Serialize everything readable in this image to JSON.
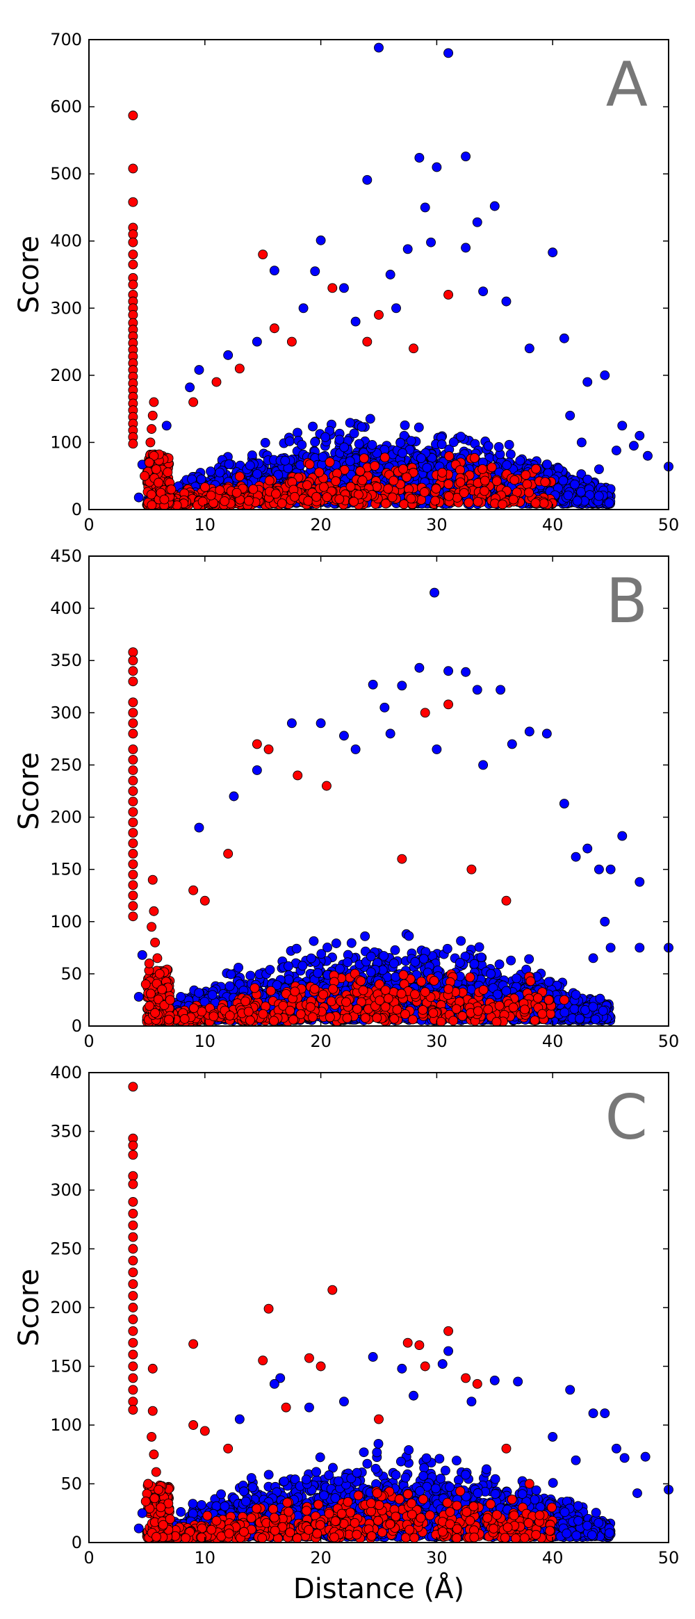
{
  "chart_data": [
    {
      "type": "scatter",
      "panel_label": "A",
      "xlabel": "",
      "ylabel": "Score",
      "xlim": [
        0,
        50
      ],
      "ylim": [
        0,
        700
      ],
      "x_ticks": [
        "0",
        "10",
        "20",
        "30",
        "40",
        "50"
      ],
      "y_ticks": [
        "0",
        "100",
        "200",
        "300",
        "400",
        "500",
        "600",
        "700"
      ],
      "grid": false,
      "legend": "none",
      "series": [
        {
          "color": "#0000ff",
          "points": [
            [
              25,
              688
            ],
            [
              31,
              680
            ],
            [
              32.5,
              526
            ],
            [
              28.5,
              524
            ],
            [
              30,
              510
            ],
            [
              24,
              491
            ],
            [
              35,
              452
            ],
            [
              29,
              450
            ],
            [
              33.5,
              428
            ],
            [
              20,
              401
            ],
            [
              29.5,
              398
            ],
            [
              27.5,
              388
            ],
            [
              32.5,
              390
            ],
            [
              40,
              383
            ],
            [
              16,
              356
            ],
            [
              19.5,
              355
            ],
            [
              34,
              325
            ],
            [
              22,
              330
            ],
            [
              36,
              310
            ],
            [
              41,
              255
            ],
            [
              43,
              190
            ],
            [
              44.5,
              200
            ],
            [
              46,
              125
            ],
            [
              47.5,
              110
            ],
            [
              47,
              95
            ],
            [
              48.2,
              80
            ],
            [
              50,
              64
            ],
            [
              45.5,
              88
            ],
            [
              42.5,
              100
            ],
            [
              44,
              60
            ],
            [
              41.5,
              140
            ],
            [
              38,
              240
            ],
            [
              26.5,
              300
            ],
            [
              23,
              280
            ],
            [
              18.5,
              300
            ],
            [
              14.5,
              250
            ],
            [
              12,
              230
            ],
            [
              9.5,
              208
            ],
            [
              8.7,
              182
            ],
            [
              6.7,
              125
            ],
            [
              4.6,
              67
            ],
            [
              4.3,
              18
            ],
            [
              26,
              350
            ]
          ]
        },
        {
          "color": "#ff0000",
          "points": [
            [
              3.8,
              587
            ],
            [
              3.8,
              508
            ],
            [
              3.8,
              458
            ],
            [
              3.8,
              420
            ],
            [
              3.8,
              410
            ],
            [
              3.8,
              398
            ],
            [
              3.8,
              380
            ],
            [
              3.8,
              365
            ],
            [
              3.8,
              345
            ],
            [
              3.8,
              335
            ],
            [
              3.8,
              320
            ],
            [
              3.8,
              310
            ],
            [
              3.8,
              300
            ],
            [
              3.8,
              290
            ],
            [
              3.8,
              278
            ],
            [
              3.8,
              268
            ],
            [
              3.8,
              258
            ],
            [
              3.8,
              248
            ],
            [
              3.8,
              238
            ],
            [
              3.8,
              228
            ],
            [
              3.8,
              218
            ],
            [
              3.8,
              208
            ],
            [
              3.8,
              198
            ],
            [
              3.8,
              188
            ],
            [
              3.8,
              178
            ],
            [
              3.8,
              168
            ],
            [
              3.8,
              158
            ],
            [
              3.8,
              148
            ],
            [
              3.8,
              138
            ],
            [
              3.8,
              128
            ],
            [
              3.8,
              118
            ],
            [
              3.8,
              108
            ],
            [
              3.8,
              98
            ],
            [
              15,
              380
            ],
            [
              21,
              330
            ],
            [
              31,
              320
            ],
            [
              25,
              290
            ],
            [
              17.5,
              250
            ],
            [
              13,
              210
            ],
            [
              11,
              190
            ],
            [
              9,
              160
            ],
            [
              5.6,
              160
            ],
            [
              5.5,
              140
            ],
            [
              5.4,
              120
            ],
            [
              5.3,
              100
            ],
            [
              5.6,
              80
            ],
            [
              5.8,
              60
            ],
            [
              6.0,
              40
            ],
            [
              6.2,
              25
            ],
            [
              6.5,
              15
            ],
            [
              5.2,
              70
            ],
            [
              4.8,
              50
            ],
            [
              7.1,
              30
            ],
            [
              16,
              270
            ],
            [
              24,
              250
            ],
            [
              28,
              240
            ]
          ]
        }
      ]
    },
    {
      "type": "scatter",
      "panel_label": "B",
      "xlabel": "",
      "ylabel": "Score",
      "xlim": [
        0,
        50
      ],
      "ylim": [
        0,
        450
      ],
      "x_ticks": [
        "0",
        "10",
        "20",
        "30",
        "40",
        "50"
      ],
      "y_ticks": [
        "0",
        "50",
        "100",
        "150",
        "200",
        "250",
        "300",
        "350",
        "400",
        "450"
      ],
      "grid": false,
      "legend": "none",
      "series": [
        {
          "color": "#0000ff",
          "points": [
            [
              29.8,
              415
            ],
            [
              28.5,
              343
            ],
            [
              31,
              340
            ],
            [
              32.5,
              339
            ],
            [
              24.5,
              327
            ],
            [
              27,
              326
            ],
            [
              35.5,
              322
            ],
            [
              33.5,
              322
            ],
            [
              25.5,
              305
            ],
            [
              20,
              290
            ],
            [
              17.5,
              290
            ],
            [
              39.5,
              280
            ],
            [
              38,
              282
            ],
            [
              36.5,
              270
            ],
            [
              22,
              278
            ],
            [
              14.5,
              245
            ],
            [
              12.5,
              220
            ],
            [
              9.5,
              190
            ],
            [
              46,
              182
            ],
            [
              47.5,
              138
            ],
            [
              45,
              150
            ],
            [
              44,
              150
            ],
            [
              42,
              162
            ],
            [
              41,
              213
            ],
            [
              43,
              170
            ],
            [
              44.5,
              100
            ],
            [
              45,
              75
            ],
            [
              50,
              75
            ],
            [
              47.5,
              75
            ],
            [
              43.5,
              65
            ],
            [
              42,
              30
            ],
            [
              40.5,
              25
            ],
            [
              30,
              265
            ],
            [
              26,
              280
            ],
            [
              34,
              250
            ],
            [
              23,
              265
            ],
            [
              4.6,
              68
            ],
            [
              4.3,
              28
            ]
          ]
        },
        {
          "color": "#ff0000",
          "points": [
            [
              3.8,
              358
            ],
            [
              3.8,
              350
            ],
            [
              3.8,
              340
            ],
            [
              3.8,
              330
            ],
            [
              3.8,
              310
            ],
            [
              3.8,
              300
            ],
            [
              3.8,
              290
            ],
            [
              3.8,
              280
            ],
            [
              3.8,
              265
            ],
            [
              3.8,
              255
            ],
            [
              3.8,
              245
            ],
            [
              3.8,
              235
            ],
            [
              3.8,
              225
            ],
            [
              3.8,
              215
            ],
            [
              3.8,
              205
            ],
            [
              3.8,
              195
            ],
            [
              3.8,
              185
            ],
            [
              3.8,
              175
            ],
            [
              3.8,
              165
            ],
            [
              3.8,
              155
            ],
            [
              3.8,
              145
            ],
            [
              3.8,
              135
            ],
            [
              3.8,
              125
            ],
            [
              3.8,
              115
            ],
            [
              3.8,
              105
            ],
            [
              14.5,
              270
            ],
            [
              15.5,
              265
            ],
            [
              31,
              308
            ],
            [
              29,
              300
            ],
            [
              18,
              240
            ],
            [
              20.5,
              230
            ],
            [
              5.5,
              140
            ],
            [
              5.6,
              110
            ],
            [
              5.4,
              95
            ],
            [
              5.7,
              80
            ],
            [
              5.9,
              65
            ],
            [
              6.1,
              50
            ],
            [
              6.3,
              35
            ],
            [
              6.5,
              20
            ],
            [
              5.2,
              60
            ],
            [
              4.9,
              40
            ],
            [
              7,
              25
            ],
            [
              9,
              130
            ],
            [
              10,
              120
            ],
            [
              12,
              165
            ],
            [
              27,
              160
            ],
            [
              33,
              150
            ],
            [
              36,
              120
            ],
            [
              41,
              25
            ]
          ]
        }
      ]
    },
    {
      "type": "scatter",
      "panel_label": "C",
      "xlabel": "Distance (Å)",
      "ylabel": "Score",
      "xlim": [
        0,
        50
      ],
      "ylim": [
        0,
        400
      ],
      "x_ticks": [
        "0",
        "10",
        "20",
        "30",
        "40",
        "50"
      ],
      "y_ticks": [
        "0",
        "50",
        "100",
        "150",
        "200",
        "250",
        "300",
        "350",
        "400"
      ],
      "grid": false,
      "legend": "none",
      "series": [
        {
          "color": "#0000ff",
          "points": [
            [
              24.5,
              158
            ],
            [
              30.5,
              152
            ],
            [
              31,
              163
            ],
            [
              27,
              148
            ],
            [
              35,
              138
            ],
            [
              37,
              137
            ],
            [
              41.5,
              130
            ],
            [
              43.5,
              110
            ],
            [
              44.5,
              110
            ],
            [
              45.5,
              80
            ],
            [
              46.2,
              72
            ],
            [
              48,
              73
            ],
            [
              47.3,
              42
            ],
            [
              50,
              45
            ],
            [
              42,
              70
            ],
            [
              40,
              90
            ],
            [
              16.5,
              140
            ],
            [
              16,
              135
            ],
            [
              13,
              105
            ],
            [
              19,
              115
            ],
            [
              22,
              120
            ],
            [
              4.6,
              25
            ],
            [
              4.3,
              12
            ],
            [
              33,
              120
            ],
            [
              28,
              125
            ]
          ]
        },
        {
          "color": "#ff0000",
          "points": [
            [
              3.8,
              388
            ],
            [
              3.8,
              344
            ],
            [
              3.8,
              338
            ],
            [
              3.8,
              330
            ],
            [
              3.8,
              312
            ],
            [
              3.8,
              305
            ],
            [
              3.8,
              290
            ],
            [
              3.8,
              280
            ],
            [
              3.8,
              270
            ],
            [
              3.8,
              260
            ],
            [
              3.8,
              250
            ],
            [
              3.8,
              240
            ],
            [
              3.8,
              230
            ],
            [
              3.8,
              220
            ],
            [
              3.8,
              210
            ],
            [
              3.8,
              200
            ],
            [
              3.8,
              190
            ],
            [
              3.8,
              180
            ],
            [
              3.8,
              170
            ],
            [
              3.8,
              160
            ],
            [
              3.8,
              150
            ],
            [
              3.8,
              140
            ],
            [
              3.8,
              130
            ],
            [
              3.8,
              120
            ],
            [
              3.8,
              113
            ],
            [
              21,
              215
            ],
            [
              15.5,
              199
            ],
            [
              31,
              180
            ],
            [
              27.5,
              170
            ],
            [
              28.5,
              168
            ],
            [
              9,
              169
            ],
            [
              19,
              157
            ],
            [
              20,
              150
            ],
            [
              15,
              155
            ],
            [
              29,
              150
            ],
            [
              5.5,
              148
            ],
            [
              5.5,
              112
            ],
            [
              5.4,
              90
            ],
            [
              5.6,
              75
            ],
            [
              5.8,
              60
            ],
            [
              6.0,
              45
            ],
            [
              6.2,
              30
            ],
            [
              6.4,
              15
            ],
            [
              5.1,
              50
            ],
            [
              4.9,
              35
            ],
            [
              7,
              20
            ],
            [
              9,
              100
            ],
            [
              10,
              95
            ],
            [
              12,
              80
            ],
            [
              17,
              115
            ],
            [
              25,
              105
            ],
            [
              32.5,
              140
            ],
            [
              33.5,
              135
            ],
            [
              36,
              80
            ],
            [
              38,
              50
            ]
          ]
        }
      ]
    }
  ]
}
